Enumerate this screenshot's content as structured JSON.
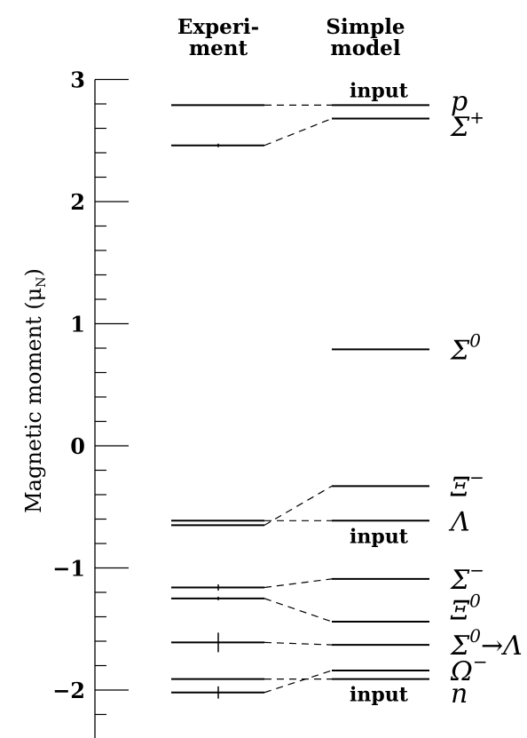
{
  "chart_data": {
    "type": "level-diagram",
    "columns": [
      {
        "key": "experiment",
        "label_lines": [
          "Experi-",
          "ment"
        ]
      },
      {
        "key": "model",
        "label_lines": [
          "Simple",
          "model"
        ]
      }
    ],
    "ylabel": "Magnetic moment (μ",
    "ylabel_subscript": "N",
    "ylabel_close": ")",
    "ylim": [
      -2.5,
      3.0
    ],
    "yticks": [
      {
        "value": 3,
        "label": "3"
      },
      {
        "value": 2,
        "label": "2"
      },
      {
        "value": 1,
        "label": "1"
      },
      {
        "value": 0,
        "label": "0"
      },
      {
        "value": -1,
        "label": "−1"
      },
      {
        "value": -2,
        "label": "−2"
      }
    ],
    "minor_tick_step": 0.2,
    "particles": [
      {
        "name": "p",
        "sup": "",
        "experiment": 2.79,
        "experiment_error": 0,
        "model": 2.79,
        "model_note": "input"
      },
      {
        "name": "Σ",
        "sup": "+",
        "experiment": 2.46,
        "experiment_error": 0.01,
        "model": 2.68,
        "model_note": ""
      },
      {
        "name": "Σ",
        "sup": "0",
        "experiment": null,
        "experiment_error": 0,
        "model": 0.79,
        "model_note": ""
      },
      {
        "name": "Ξ",
        "sup": "−",
        "experiment": -0.65,
        "experiment_error": 0,
        "model": -0.33,
        "model_note": ""
      },
      {
        "name": "Λ",
        "sup": "",
        "experiment": -0.613,
        "experiment_error": 0,
        "model": -0.613,
        "model_note": "input"
      },
      {
        "name": "Σ",
        "sup": "−",
        "experiment": -1.16,
        "experiment_error": 0.025,
        "model": -1.09,
        "model_note": ""
      },
      {
        "name": "Ξ",
        "sup": "0",
        "experiment": -1.25,
        "experiment_error": 0.014,
        "model": -1.44,
        "model_note": ""
      },
      {
        "name": "Σ",
        "sup": "0",
        "suffix": "→Λ",
        "experiment": -1.61,
        "experiment_error": 0.08,
        "model": -1.63,
        "model_note": ""
      },
      {
        "name": "Ω",
        "sup": "−",
        "experiment": -2.02,
        "experiment_error": 0.05,
        "model": -1.84,
        "model_note": ""
      },
      {
        "name": "n",
        "sup": "",
        "experiment": -1.91,
        "experiment_error": 0,
        "model": -1.91,
        "model_note": "input"
      }
    ],
    "particle_labels": [
      {
        "ref": 0,
        "label_value": 2.83
      },
      {
        "ref": 1,
        "label_value": 2.62
      },
      {
        "ref": 2,
        "label_value": 0.79
      },
      {
        "ref": 3,
        "label_value": -0.33
      },
      {
        "ref": 4,
        "label_value": -0.613
      },
      {
        "ref": 5,
        "label_value": -1.09
      },
      {
        "ref": 6,
        "label_value": -1.34
      },
      {
        "ref": 7,
        "label_value": -1.63
      },
      {
        "ref": 8,
        "label_value": -1.84
      },
      {
        "ref": 9,
        "label_value": -2.02
      }
    ]
  }
}
